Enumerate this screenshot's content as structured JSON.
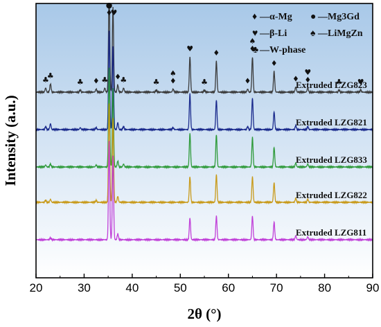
{
  "chart_data": {
    "type": "line",
    "xlabel": "2θ (°)",
    "ylabel": "Intensity (a.u.)",
    "xlim": [
      20,
      90
    ],
    "x_ticks": [
      20,
      30,
      40,
      50,
      60,
      70,
      80,
      90
    ],
    "y_ticks_shown": false,
    "grid": false,
    "background_gradient": [
      "#a8c8e8",
      "#ffffff"
    ],
    "series": [
      {
        "name": "Extruded LZG823",
        "color": "#3a3a3a",
        "baseline": 0.8,
        "scale": 1.0,
        "peaks": [
          [
            22.0,
            0.04
          ],
          [
            23.0,
            0.08
          ],
          [
            29.2,
            0.02
          ],
          [
            32.5,
            0.03
          ],
          [
            34.3,
            0.04
          ],
          [
            35.2,
            1.0
          ],
          [
            36.0,
            0.82
          ],
          [
            37.0,
            0.07
          ],
          [
            38.2,
            0.04
          ],
          [
            45.0,
            0.02
          ],
          [
            48.5,
            0.03
          ],
          [
            52.0,
            0.34
          ],
          [
            55.0,
            0.02
          ],
          [
            57.5,
            0.3
          ],
          [
            64.0,
            0.03
          ],
          [
            65.0,
            0.34
          ],
          [
            69.5,
            0.2
          ],
          [
            74.0,
            0.05
          ],
          [
            76.5,
            0.04
          ],
          [
            83.0,
            0.02
          ],
          [
            87.5,
            0.02
          ]
        ]
      },
      {
        "name": "Extruded LZG821",
        "color": "#1a2a8c",
        "baseline": 0.62,
        "scale": 0.95,
        "peaks": [
          [
            22.0,
            0.03
          ],
          [
            23.0,
            0.06
          ],
          [
            29.2,
            0.02
          ],
          [
            32.5,
            0.02
          ],
          [
            35.2,
            1.0
          ],
          [
            36.0,
            0.85
          ],
          [
            37.0,
            0.07
          ],
          [
            38.2,
            0.03
          ],
          [
            48.5,
            0.02
          ],
          [
            52.0,
            0.36
          ],
          [
            57.5,
            0.3
          ],
          [
            64.0,
            0.03
          ],
          [
            65.0,
            0.32
          ],
          [
            69.5,
            0.18
          ],
          [
            74.0,
            0.04
          ],
          [
            76.5,
            0.03
          ]
        ]
      },
      {
        "name": "Extruded LZG833",
        "color": "#2e9a3a",
        "baseline": 0.44,
        "scale": 0.95,
        "peaks": [
          [
            22.0,
            0.02
          ],
          [
            23.0,
            0.03
          ],
          [
            32.5,
            0.02
          ],
          [
            35.2,
            1.0
          ],
          [
            36.0,
            0.8
          ],
          [
            37.0,
            0.06
          ],
          [
            38.2,
            0.03
          ],
          [
            52.0,
            0.34
          ],
          [
            57.5,
            0.33
          ],
          [
            65.0,
            0.3
          ],
          [
            69.5,
            0.2
          ],
          [
            74.0,
            0.04
          ],
          [
            76.5,
            0.03
          ]
        ]
      },
      {
        "name": "Extruded LZG822",
        "color": "#c89a1a",
        "baseline": 0.27,
        "scale": 0.95,
        "peaks": [
          [
            22.0,
            0.02
          ],
          [
            23.0,
            0.03
          ],
          [
            32.5,
            0.02
          ],
          [
            35.2,
            1.0
          ],
          [
            36.0,
            0.85
          ],
          [
            37.0,
            0.06
          ],
          [
            52.0,
            0.26
          ],
          [
            57.5,
            0.28
          ],
          [
            65.0,
            0.26
          ],
          [
            69.5,
            0.2
          ],
          [
            74.0,
            0.04
          ],
          [
            76.5,
            0.03
          ]
        ]
      },
      {
        "name": "Extruded LZG811",
        "color": "#c040d8",
        "baseline": 0.09,
        "scale": 0.95,
        "peaks": [
          [
            23.0,
            0.02
          ],
          [
            35.2,
            1.0
          ],
          [
            36.0,
            0.85
          ],
          [
            37.0,
            0.06
          ],
          [
            52.0,
            0.22
          ],
          [
            57.5,
            0.24
          ],
          [
            65.0,
            0.24
          ],
          [
            69.5,
            0.18
          ],
          [
            74.0,
            0.04
          ],
          [
            76.5,
            0.03
          ]
        ]
      }
    ],
    "legend": [
      {
        "symbol": "♦",
        "label": "—α-Mg"
      },
      {
        "symbol": "●",
        "label": "—Mg3Gd"
      },
      {
        "symbol": "♥",
        "label": "—β-Li"
      },
      {
        "symbol": "♠",
        "label": "—LiMgZn"
      },
      {
        "symbol": "♣",
        "label": "—W-phase"
      }
    ],
    "legend_position": "top-right",
    "peak_markers": [
      {
        "x": 35.2,
        "symbols": [
          "●",
          "♦"
        ]
      },
      {
        "x": 36.2,
        "symbols": [
          "♥"
        ]
      },
      {
        "x": 37.0,
        "symbols": [
          "♦"
        ]
      },
      {
        "x": 38.2,
        "symbols": [
          "♣"
        ]
      },
      {
        "x": 22.0,
        "symbols": [
          "♣"
        ]
      },
      {
        "x": 23.0,
        "symbols": [
          "♣"
        ]
      },
      {
        "x": 29.2,
        "symbols": [
          "♣"
        ]
      },
      {
        "x": 32.5,
        "symbols": [
          "♦"
        ]
      },
      {
        "x": 34.3,
        "symbols": [
          "♣"
        ]
      },
      {
        "x": 45.0,
        "symbols": [
          "♣"
        ]
      },
      {
        "x": 48.5,
        "symbols": [
          "♠",
          "♦"
        ]
      },
      {
        "x": 52.0,
        "symbols": [
          "♥"
        ]
      },
      {
        "x": 55.0,
        "symbols": [
          "♣"
        ]
      },
      {
        "x": 57.5,
        "symbols": [
          "♦"
        ]
      },
      {
        "x": 64.0,
        "symbols": [
          "♦"
        ]
      },
      {
        "x": 65.0,
        "symbols": [
          "♠",
          "♦"
        ]
      },
      {
        "x": 69.5,
        "symbols": [
          "♦"
        ]
      },
      {
        "x": 74.0,
        "symbols": [
          "♦"
        ]
      },
      {
        "x": 76.5,
        "symbols": [
          "♥",
          "♦"
        ]
      },
      {
        "x": 83.0,
        "symbols": [
          "♣"
        ]
      },
      {
        "x": 87.5,
        "symbols": [
          "♥"
        ]
      }
    ]
  }
}
